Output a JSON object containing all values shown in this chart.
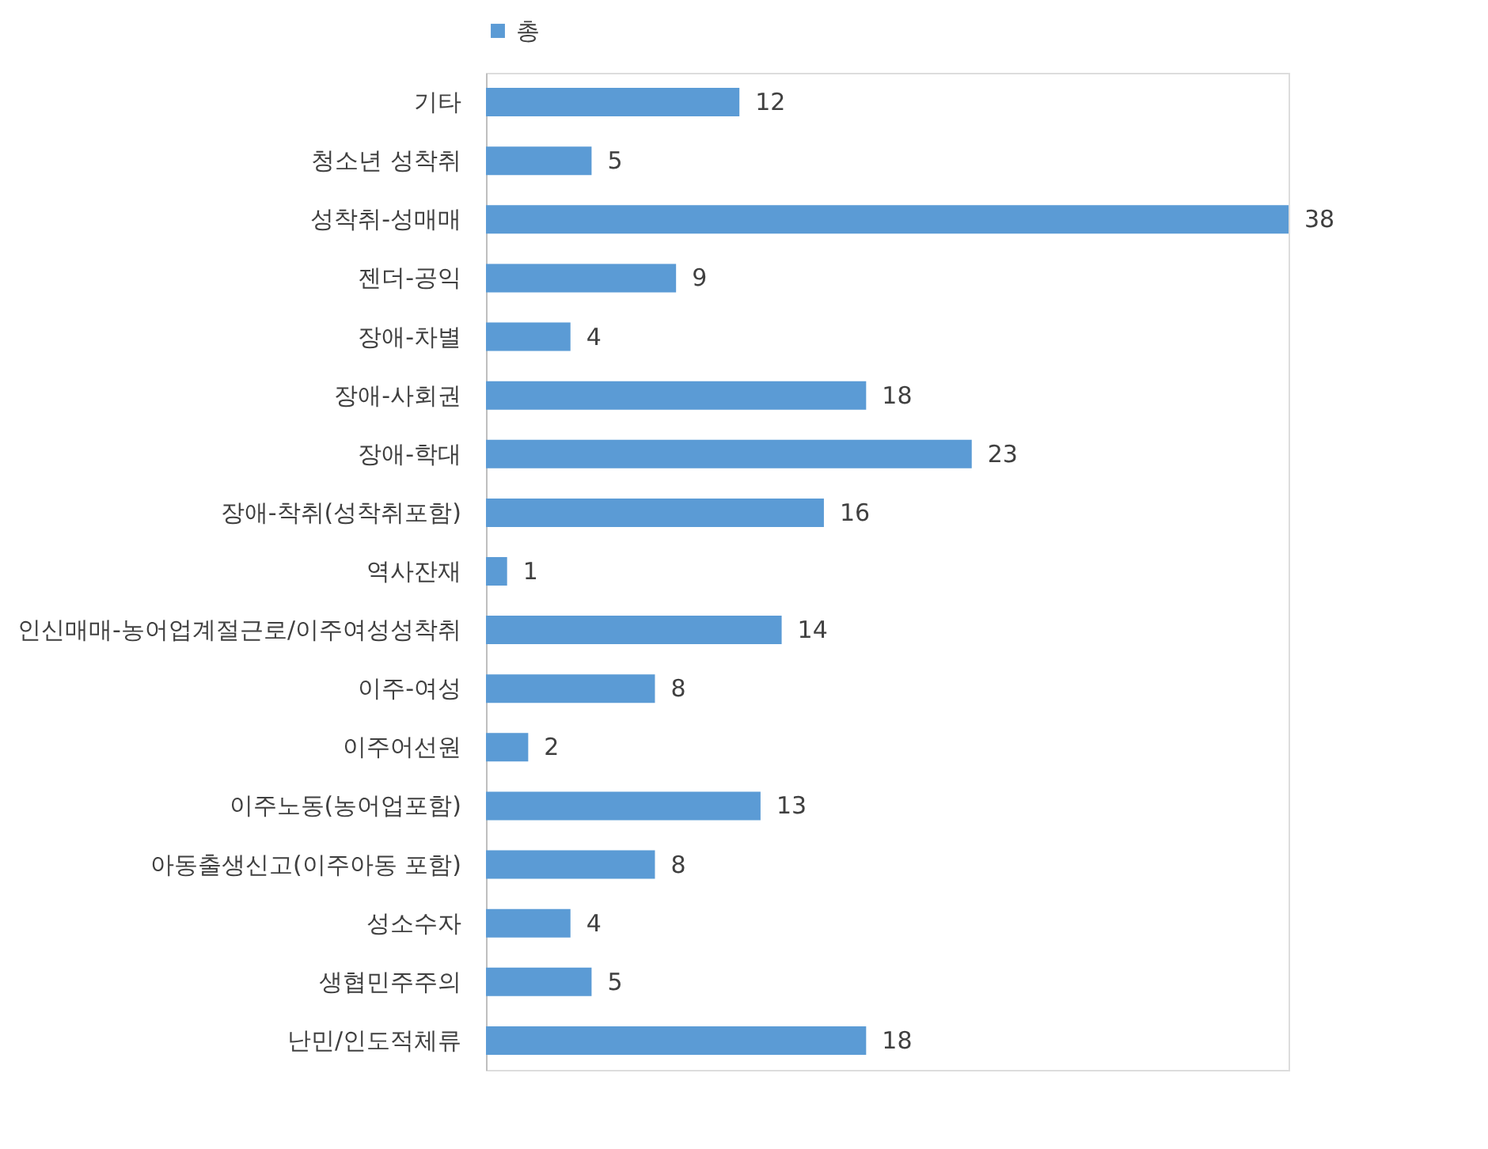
{
  "chart_data": {
    "type": "bar",
    "orientation": "horizontal",
    "categories": [
      "기타",
      "청소년 성착취",
      "성착취-성매매",
      "젠더-공익",
      "장애-차별",
      "장애-사회권",
      "장애-학대",
      "장애-착취(성착취포함)",
      "역사잔재",
      "인신매매-농어업계절근로/이주여성성착취",
      "이주-여성",
      "이주어선원",
      "이주노동(농어업포함)",
      "아동출생신고(이주아동 포함)",
      "성소수자",
      "생협민주주의",
      "난민/인도적체류"
    ],
    "series": [
      {
        "name": "총",
        "color": "#5b9bd5",
        "values": [
          12,
          5,
          38,
          9,
          4,
          18,
          23,
          16,
          1,
          14,
          8,
          2,
          13,
          8,
          4,
          5,
          18
        ]
      }
    ],
    "data_labels": true,
    "legend": "top",
    "grid": false,
    "tick_labels": "y"
  }
}
